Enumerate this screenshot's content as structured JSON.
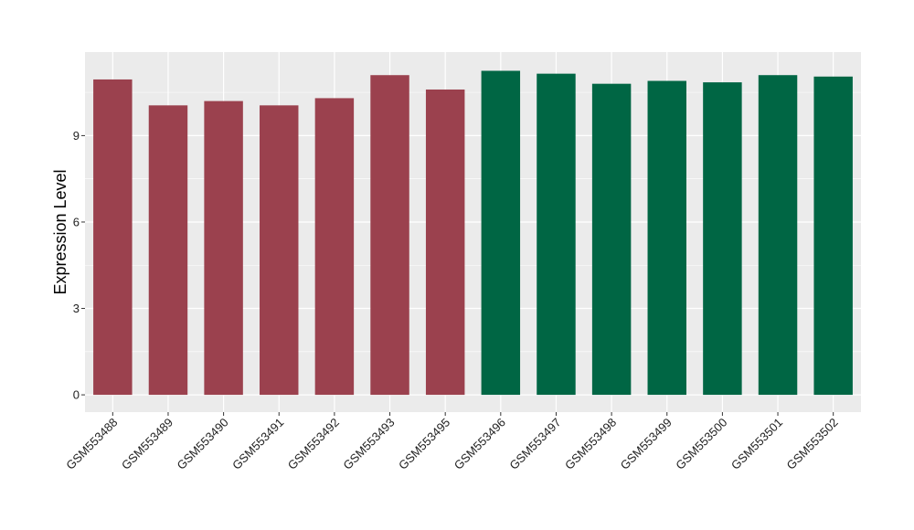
{
  "chart_data": {
    "type": "bar",
    "title": "",
    "xlabel": "",
    "ylabel": "Expression Level",
    "ylim": [
      -0.6,
      11.9
    ],
    "yticks": [
      0,
      3,
      6,
      9
    ],
    "grid": true,
    "legend": "none",
    "categories": [
      "GSM553488",
      "GSM553489",
      "GSM553490",
      "GSM553491",
      "GSM553492",
      "GSM553493",
      "GSM553495",
      "GSM553496",
      "GSM553497",
      "GSM553498",
      "GSM553499",
      "GSM553500",
      "GSM553501",
      "GSM553502"
    ],
    "values": [
      10.95,
      10.05,
      10.2,
      10.05,
      10.3,
      11.1,
      10.6,
      11.25,
      11.15,
      10.8,
      10.9,
      10.85,
      11.1,
      11.05
    ],
    "groups": [
      "g1",
      "g1",
      "g1",
      "g1",
      "g1",
      "g1",
      "g1",
      "g2",
      "g2",
      "g2",
      "g2",
      "g2",
      "g2",
      "g2"
    ],
    "colors": {
      "g1": "#9B414E",
      "g2": "#006644"
    },
    "panel_background": "#EBEBEB"
  }
}
